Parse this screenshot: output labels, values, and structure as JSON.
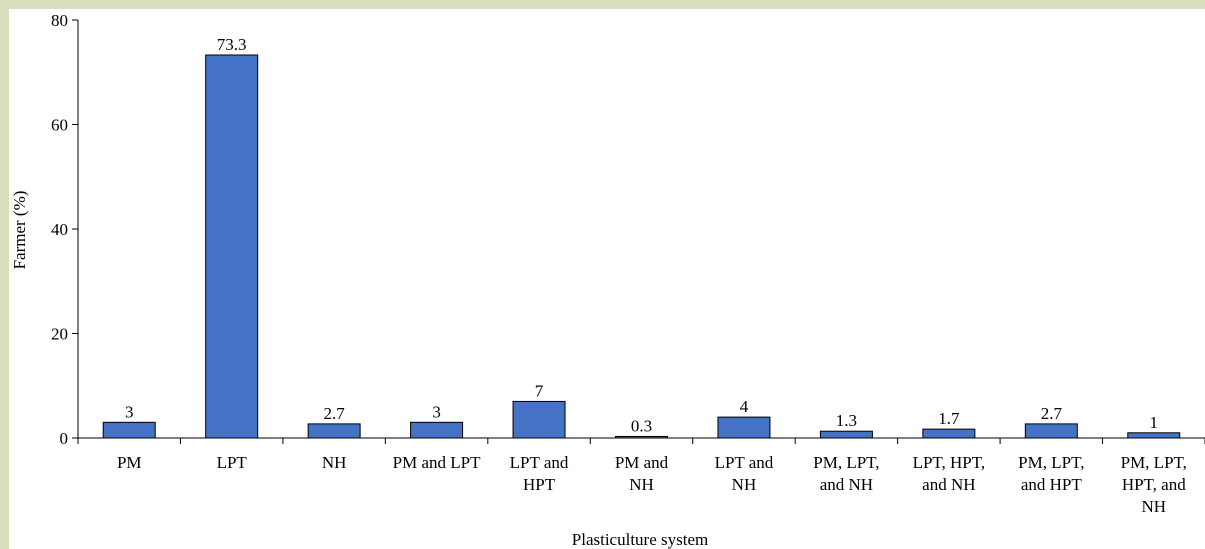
{
  "chart_data": {
    "type": "bar",
    "categories": [
      [
        "PM"
      ],
      [
        "LPT"
      ],
      [
        "NH"
      ],
      [
        "PM and LPT"
      ],
      [
        "LPT and",
        "HPT"
      ],
      [
        "PM and",
        "NH"
      ],
      [
        "LPT and",
        "NH"
      ],
      [
        "PM, LPT,",
        "and NH"
      ],
      [
        "LPT, HPT,",
        "and NH"
      ],
      [
        "PM, LPT,",
        "and HPT"
      ],
      [
        "PM, LPT,",
        "HPT, and",
        "NH"
      ]
    ],
    "values": [
      3,
      73.3,
      2.7,
      3,
      7,
      0.3,
      4,
      1.3,
      1.7,
      2.7,
      1
    ],
    "value_labels": [
      "3",
      "73.3",
      "2.7",
      "3",
      "7",
      "0.3",
      "4",
      "1.3",
      "1.7",
      "2.7",
      "1"
    ],
    "ylabel": "Farmer (%)",
    "xlabel": "Plasticulture system",
    "ylim": [
      0,
      80
    ],
    "yticks": [
      "0",
      "20",
      "40",
      "60",
      "80"
    ],
    "bar_color": "#4472c4",
    "grid": false,
    "legend": false
  }
}
